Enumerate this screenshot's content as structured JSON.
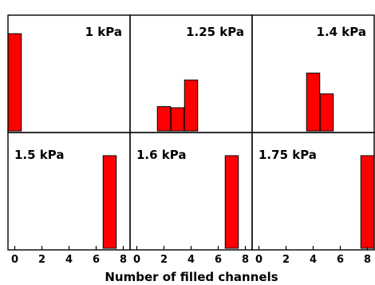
{
  "chart_data": {
    "type": "bar",
    "title": "",
    "xlabel": "Number of filled channels",
    "ylabel": "",
    "xlim": [
      -0.5,
      8.5
    ],
    "ylim": [
      0,
      1
    ],
    "xticks": [
      0,
      2,
      4,
      6,
      8
    ],
    "layout": "2x3 grid of histogram panels",
    "bar_color": "#ff0000",
    "panels": [
      {
        "label": "1 kPa",
        "bars": [
          {
            "x": 0,
            "value": 0.84
          }
        ]
      },
      {
        "label": "1.25 kPa",
        "bars": [
          {
            "x": 2,
            "value": 0.21
          },
          {
            "x": 3,
            "value": 0.2
          },
          {
            "x": 4,
            "value": 0.44
          }
        ]
      },
      {
        "label": "1.4 kPa",
        "bars": [
          {
            "x": 4,
            "value": 0.5
          },
          {
            "x": 5,
            "value": 0.32
          }
        ]
      },
      {
        "label": "1.5 kPa",
        "bars": [
          {
            "x": 7,
            "value": 0.8
          }
        ]
      },
      {
        "label": "1.6 kPa",
        "bars": [
          {
            "x": 7,
            "value": 0.8
          }
        ]
      },
      {
        "label": "1.75 kPa",
        "bars": [
          {
            "x": 8,
            "value": 0.8
          }
        ]
      }
    ]
  }
}
